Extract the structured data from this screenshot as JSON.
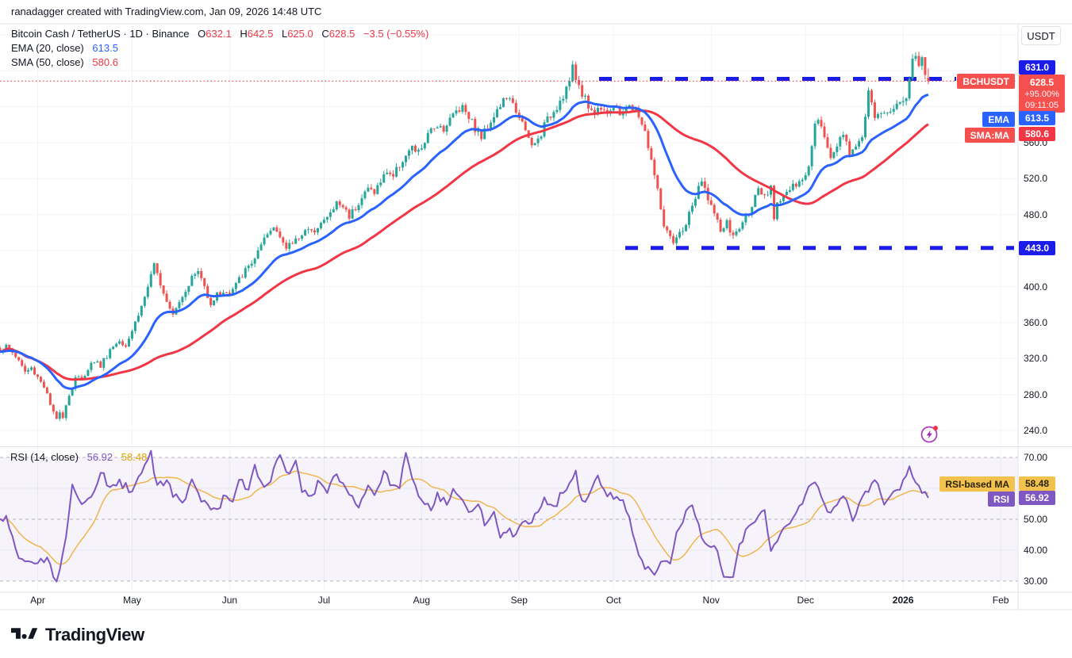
{
  "attribution": {
    "text": "ranadagger created with TradingView.com, Jan 09, 2026 14:48 UTC"
  },
  "legend": {
    "title": "Bitcoin Cash / TetherUS · 1D · Binance",
    "o_label": "O",
    "o": "632.1",
    "h_label": "H",
    "h": "642.5",
    "l_label": "L",
    "l": "625.0",
    "c_label": "C",
    "c": "628.5",
    "change": "−3.5 (−0.55%)",
    "ema_label": "EMA (20, close)",
    "ema_value": "613.5",
    "sma_label": "SMA (50, close)",
    "sma_value": "580.6"
  },
  "rsi_legend": {
    "title": "RSI (14, close)",
    "rsi_value": "56.92",
    "ma_value": "58.48"
  },
  "price_axis": {
    "currency": "USDT",
    "tick_values": [
      560,
      520,
      480,
      400,
      360,
      320,
      280,
      240
    ],
    "badges": {
      "resistance": "631.0",
      "last": "628.5",
      "change_pct": "+95.00%",
      "countdown": "09:11:05",
      "ema": "613.5",
      "sma": "580.6",
      "support": "443.0"
    }
  },
  "rsi_axis": {
    "tick_values": [
      70,
      50,
      40,
      30
    ],
    "badges": {
      "rsi_ma": "58.48",
      "rsi": "56.92"
    }
  },
  "floating_labels": {
    "symbol": "BCHUSDT",
    "ema": "EMA",
    "sma": "SMA:MA",
    "rsi_ma": "RSI-based MA",
    "rsi": "RSI"
  },
  "time_axis": {
    "labels": [
      {
        "text": "Apr",
        "day": 12
      },
      {
        "text": "May",
        "day": 42
      },
      {
        "text": "Jun",
        "day": 73
      },
      {
        "text": "Jul",
        "day": 103
      },
      {
        "text": "Aug",
        "day": 134
      },
      {
        "text": "Sep",
        "day": 165
      },
      {
        "text": "Oct",
        "day": 195
      },
      {
        "text": "Nov",
        "day": 226
      },
      {
        "text": "Dec",
        "day": 256
      },
      {
        "text": "2026",
        "day": 287,
        "emphasis": true
      },
      {
        "text": "Feb",
        "day": 318
      }
    ]
  },
  "footer": {
    "brand": "TradingView"
  },
  "colors": {
    "up": "#26a69a",
    "down": "#ef5350",
    "ema": "#2962ff",
    "sma": "#f23645",
    "level_blue": "#1c1ce8",
    "price_line": "#f23645",
    "rsi": "#7e57c2",
    "rsi_ma": "#f0b64d",
    "grid": "#f0f3fa",
    "separator": "#e0e3eb",
    "rsi_band": "rgba(126,87,194,0.07)",
    "rsi_guide": "#9b9eab"
  },
  "chart_data": {
    "type": "candlestick",
    "symbol": "BCHUSDT",
    "exchange": "Binance",
    "interval": "1D",
    "title": "Bitcoin Cash / TetherUS",
    "start_date_approx": "2025-03-20",
    "days_shown": 296,
    "ohlc_last": {
      "open": 632.1,
      "high": 642.5,
      "low": 625.0,
      "close": 628.5,
      "change": -3.5,
      "change_pct": -0.55
    },
    "levels": {
      "resistance": 631.0,
      "support": 443.0,
      "last_price": 628.5,
      "gain_since_start_pct": "+95.00%",
      "bar_countdown": "09:11:05"
    },
    "indicators": [
      {
        "name": "EMA",
        "period": 20,
        "last": 613.5,
        "color": "#2962ff"
      },
      {
        "name": "SMA",
        "period": 50,
        "last": 580.6,
        "color": "#f23645"
      },
      {
        "name": "RSI",
        "period": 14,
        "last": 56.92,
        "color": "#7e57c2"
      },
      {
        "name": "RSI-based MA",
        "period": 14,
        "last": 58.48,
        "color": "#f0b64d"
      }
    ],
    "price_axis_ticks": [
      560,
      520,
      480,
      400,
      360,
      320,
      280,
      240
    ],
    "price_range_visible": [
      225,
      692
    ],
    "rsi_axis_ticks": [
      70,
      50,
      40,
      30
    ],
    "rsi_guides": [
      70,
      50,
      30
    ],
    "price_keypoints": [
      [
        0,
        330
      ],
      [
        2,
        333
      ],
      [
        4,
        327
      ],
      [
        6,
        318
      ],
      [
        8,
        305
      ],
      [
        10,
        309
      ],
      [
        12,
        300
      ],
      [
        14,
        290
      ],
      [
        16,
        268
      ],
      [
        17,
        258
      ],
      [
        18,
        252
      ],
      [
        19,
        263
      ],
      [
        20,
        256
      ],
      [
        21,
        270
      ],
      [
        23,
        288
      ],
      [
        24,
        300
      ],
      [
        26,
        296
      ],
      [
        28,
        310
      ],
      [
        30,
        318
      ],
      [
        32,
        312
      ],
      [
        35,
        330
      ],
      [
        38,
        341
      ],
      [
        40,
        336
      ],
      [
        42,
        352
      ],
      [
        45,
        378
      ],
      [
        47,
        400
      ],
      [
        49,
        422
      ],
      [
        51,
        405
      ],
      [
        53,
        385
      ],
      [
        55,
        372
      ],
      [
        57,
        384
      ],
      [
        59,
        397
      ],
      [
        61,
        410
      ],
      [
        63,
        417
      ],
      [
        65,
        400
      ],
      [
        67,
        382
      ],
      [
        69,
        391
      ],
      [
        71,
        395
      ],
      [
        73,
        391
      ],
      [
        75,
        402
      ],
      [
        77,
        413
      ],
      [
        79,
        422
      ],
      [
        81,
        432
      ],
      [
        83,
        444
      ],
      [
        85,
        457
      ],
      [
        87,
        466
      ],
      [
        89,
        459
      ],
      [
        91,
        441
      ],
      [
        93,
        449
      ],
      [
        95,
        456
      ],
      [
        97,
        463
      ],
      [
        99,
        459
      ],
      [
        101,
        469
      ],
      [
        103,
        473
      ],
      [
        105,
        481
      ],
      [
        107,
        493
      ],
      [
        109,
        489
      ],
      [
        111,
        479
      ],
      [
        113,
        489
      ],
      [
        115,
        499
      ],
      [
        117,
        509
      ],
      [
        119,
        506
      ],
      [
        121,
        516
      ],
      [
        123,
        529
      ],
      [
        125,
        523
      ],
      [
        127,
        536
      ],
      [
        129,
        546
      ],
      [
        131,
        553
      ],
      [
        133,
        549
      ],
      [
        135,
        561
      ],
      [
        137,
        573
      ],
      [
        139,
        581
      ],
      [
        141,
        576
      ],
      [
        143,
        586
      ],
      [
        145,
        596
      ],
      [
        147,
        601
      ],
      [
        149,
        591
      ],
      [
        151,
        576
      ],
      [
        153,
        566
      ],
      [
        155,
        579
      ],
      [
        157,
        591
      ],
      [
        159,
        601
      ],
      [
        161,
        611
      ],
      [
        163,
        601
      ],
      [
        165,
        591
      ],
      [
        167,
        571
      ],
      [
        169,
        556
      ],
      [
        171,
        563
      ],
      [
        173,
        579
      ],
      [
        175,
        591
      ],
      [
        177,
        601
      ],
      [
        179,
        613
      ],
      [
        181,
        629
      ],
      [
        182,
        642
      ],
      [
        183,
        631
      ],
      [
        185,
        616
      ],
      [
        187,
        601
      ],
      [
        189,
        593
      ],
      [
        191,
        601
      ],
      [
        193,
        596
      ],
      [
        195,
        599
      ],
      [
        197,
        591
      ],
      [
        199,
        601
      ],
      [
        201,
        596
      ],
      [
        203,
        591
      ],
      [
        205,
        571
      ],
      [
        207,
        541
      ],
      [
        209,
        506
      ],
      [
        211,
        468
      ],
      [
        213,
        452
      ],
      [
        214,
        447
      ],
      [
        216,
        458
      ],
      [
        218,
        470
      ],
      [
        220,
        490
      ],
      [
        222,
        508
      ],
      [
        223,
        516
      ],
      [
        225,
        500
      ],
      [
        227,
        480
      ],
      [
        229,
        462
      ],
      [
        231,
        470
      ],
      [
        233,
        455
      ],
      [
        235,
        465
      ],
      [
        237,
        478
      ],
      [
        239,
        492
      ],
      [
        241,
        505
      ],
      [
        243,
        498
      ],
      [
        245,
        508
      ],
      [
        246,
        478
      ],
      [
        247,
        495
      ],
      [
        249,
        502
      ],
      [
        251,
        508
      ],
      [
        253,
        512
      ],
      [
        255,
        517
      ],
      [
        257,
        535
      ],
      [
        258,
        560
      ],
      [
        259,
        585
      ],
      [
        260,
        590
      ],
      [
        262,
        565
      ],
      [
        264,
        545
      ],
      [
        266,
        558
      ],
      [
        268,
        572
      ],
      [
        270,
        545
      ],
      [
        272,
        560
      ],
      [
        274,
        565
      ],
      [
        275,
        585
      ],
      [
        276,
        620
      ],
      [
        277,
        600
      ],
      [
        278,
        588
      ],
      [
        280,
        596
      ],
      [
        282,
        590
      ],
      [
        284,
        600
      ],
      [
        286,
        605
      ],
      [
        287,
        603
      ],
      [
        288,
        612
      ],
      [
        289,
        630
      ],
      [
        290,
        655
      ],
      [
        291,
        660
      ],
      [
        292,
        645
      ],
      [
        293,
        652
      ],
      [
        294,
        638
      ],
      [
        295,
        628.5
      ]
    ],
    "rsi_keypoints": [
      [
        2,
        50
      ],
      [
        6,
        38
      ],
      [
        11,
        35
      ],
      [
        15,
        37
      ],
      [
        18,
        29.5
      ],
      [
        21,
        45
      ],
      [
        23,
        62
      ],
      [
        26,
        55
      ],
      [
        30,
        58
      ],
      [
        32,
        66
      ],
      [
        35,
        60
      ],
      [
        38,
        62
      ],
      [
        42,
        59
      ],
      [
        44,
        63
      ],
      [
        48,
        71
      ],
      [
        50,
        60
      ],
      [
        53,
        63
      ],
      [
        55,
        58
      ],
      [
        58,
        55
      ],
      [
        61,
        62
      ],
      [
        63,
        58
      ],
      [
        66,
        54
      ],
      [
        69,
        52
      ],
      [
        71,
        57
      ],
      [
        74,
        55
      ],
      [
        76,
        63
      ],
      [
        79,
        60
      ],
      [
        81,
        67
      ],
      [
        84,
        60
      ],
      [
        86,
        63
      ],
      [
        89,
        72
      ],
      [
        91,
        64
      ],
      [
        94,
        68
      ],
      [
        96,
        60
      ],
      [
        99,
        57
      ],
      [
        101,
        62
      ],
      [
        104,
        58
      ],
      [
        106,
        65
      ],
      [
        109,
        61
      ],
      [
        111,
        57
      ],
      [
        114,
        55
      ],
      [
        117,
        60
      ],
      [
        119,
        58
      ],
      [
        122,
        65
      ],
      [
        124,
        62
      ],
      [
        127,
        60
      ],
      [
        129,
        72.5
      ],
      [
        132,
        60
      ],
      [
        134,
        57
      ],
      [
        137,
        54
      ],
      [
        139,
        58
      ],
      [
        142,
        55
      ],
      [
        144,
        60
      ],
      [
        147,
        57
      ],
      [
        149,
        52
      ],
      [
        152,
        56
      ],
      [
        154,
        48
      ],
      [
        157,
        52
      ],
      [
        159,
        45
      ],
      [
        162,
        47
      ],
      [
        164,
        44
      ],
      [
        166,
        50
      ],
      [
        168,
        48
      ],
      [
        171,
        53
      ],
      [
        173,
        57
      ],
      [
        176,
        53
      ],
      [
        178,
        58
      ],
      [
        181,
        62
      ],
      [
        183,
        65
      ],
      [
        185,
        55
      ],
      [
        188,
        60
      ],
      [
        190,
        63
      ],
      [
        193,
        58
      ],
      [
        195,
        57
      ],
      [
        198,
        55
      ],
      [
        200,
        50
      ],
      [
        203,
        38
      ],
      [
        205,
        35
      ],
      [
        208,
        32
      ],
      [
        210,
        37
      ],
      [
        213,
        35
      ],
      [
        215,
        45
      ],
      [
        218,
        52
      ],
      [
        220,
        55
      ],
      [
        223,
        45
      ],
      [
        225,
        42
      ],
      [
        228,
        40
      ],
      [
        230,
        32
      ],
      [
        233,
        30.5
      ],
      [
        235,
        42
      ],
      [
        238,
        48
      ],
      [
        240,
        50
      ],
      [
        243,
        52
      ],
      [
        245,
        40
      ],
      [
        248,
        45
      ],
      [
        250,
        48
      ],
      [
        253,
        52
      ],
      [
        255,
        55
      ],
      [
        258,
        62
      ],
      [
        261,
        58
      ],
      [
        263,
        52
      ],
      [
        266,
        55
      ],
      [
        268,
        58
      ],
      [
        271,
        50
      ],
      [
        273,
        55
      ],
      [
        276,
        60
      ],
      [
        278,
        63
      ],
      [
        281,
        55
      ],
      [
        283,
        58
      ],
      [
        286,
        60
      ],
      [
        289,
        67
      ],
      [
        291,
        62
      ],
      [
        294,
        58
      ],
      [
        295,
        56.92
      ]
    ]
  }
}
